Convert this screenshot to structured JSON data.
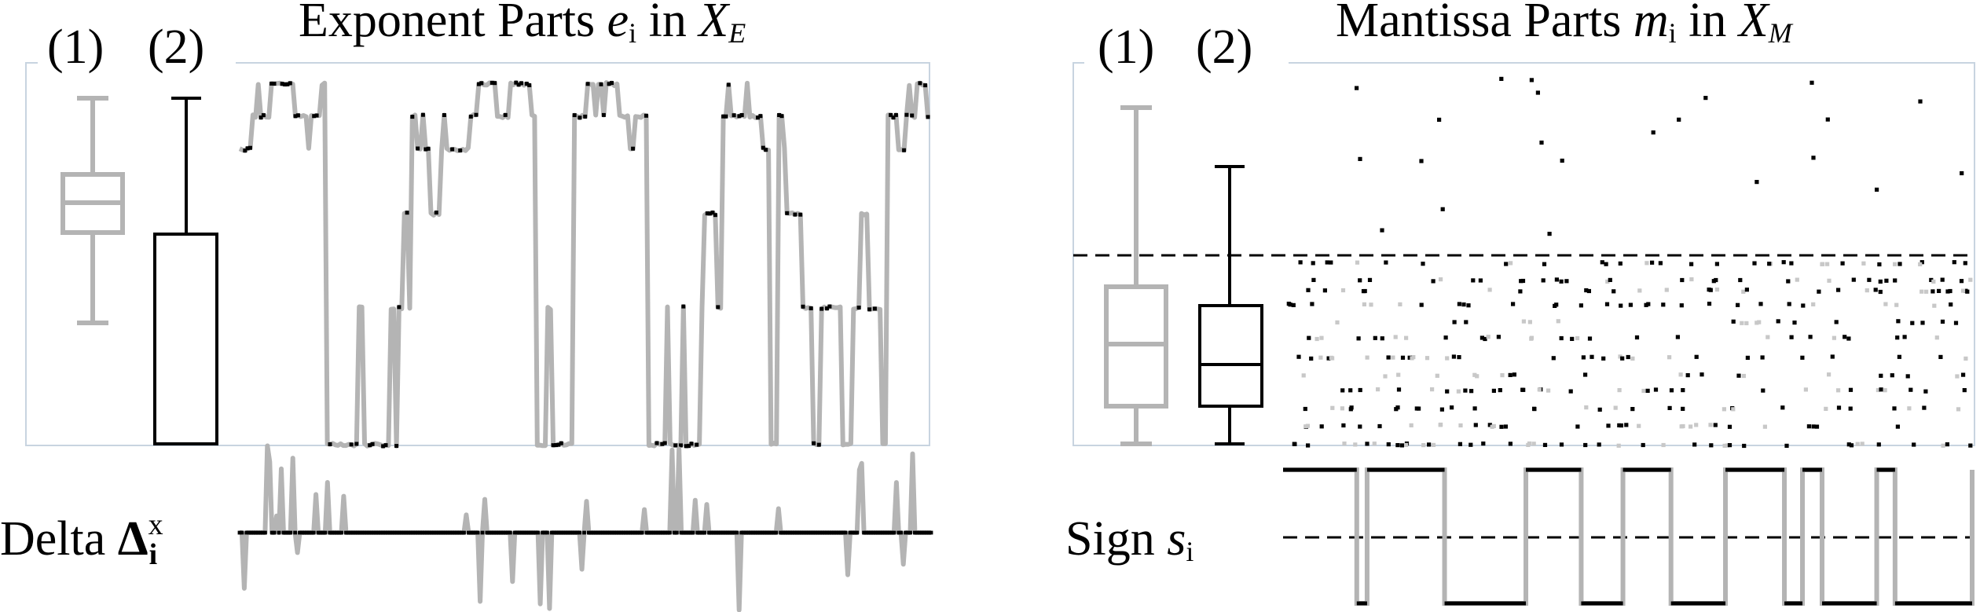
{
  "left_panel": {
    "title_prefix": "Exponent Parts ",
    "title_var": "e",
    "title_sub": "i",
    "title_mid": " in ",
    "title_set": "X",
    "title_set_sub": "E",
    "label_1": "(1)",
    "label_2": "(2)"
  },
  "right_panel": {
    "title_prefix": "Mantissa Parts ",
    "title_var": "m",
    "title_sub": "i",
    "title_mid": " in ",
    "title_set": "X",
    "title_set_sub": "M",
    "label_1": "(1)",
    "label_2": "(2)"
  },
  "bottom_left": {
    "label_word": "Delta ",
    "label_symbol": "Δ",
    "label_sup": "x",
    "label_sub": "i"
  },
  "bottom_right": {
    "label_word": "Sign ",
    "label_var": "s",
    "label_sub": "i"
  },
  "colors": {
    "series_gray": "#b4b4b4",
    "series_black": "#000000",
    "frame": "#c8d4e0"
  }
}
